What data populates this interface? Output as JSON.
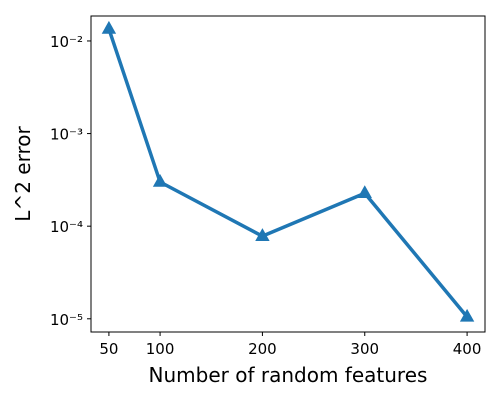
{
  "chart_data": {
    "type": "line",
    "xlabel": "Number of random features",
    "ylabel": "L^2 error",
    "x": [
      50,
      100,
      200,
      300,
      400
    ],
    "series": [
      {
        "color": "#1f77b4",
        "values": [
          0.0135,
          0.0003,
          7.8e-05,
          0.000227,
          1.05e-05
        ]
      }
    ],
    "xlim": [
      32.5,
      417.5
    ],
    "xticks": [
      50,
      100,
      200,
      300,
      400
    ],
    "ylim": [
      7.2e-06,
      0.0186
    ],
    "ylog": true,
    "yticks": [
      {
        "value": 1e-05,
        "label": "10⁻⁵"
      },
      {
        "value": 0.0001,
        "label": "10⁻⁴"
      },
      {
        "value": 0.001,
        "label": "10⁻³"
      },
      {
        "value": 0.01,
        "label": "10⁻²"
      }
    ]
  }
}
